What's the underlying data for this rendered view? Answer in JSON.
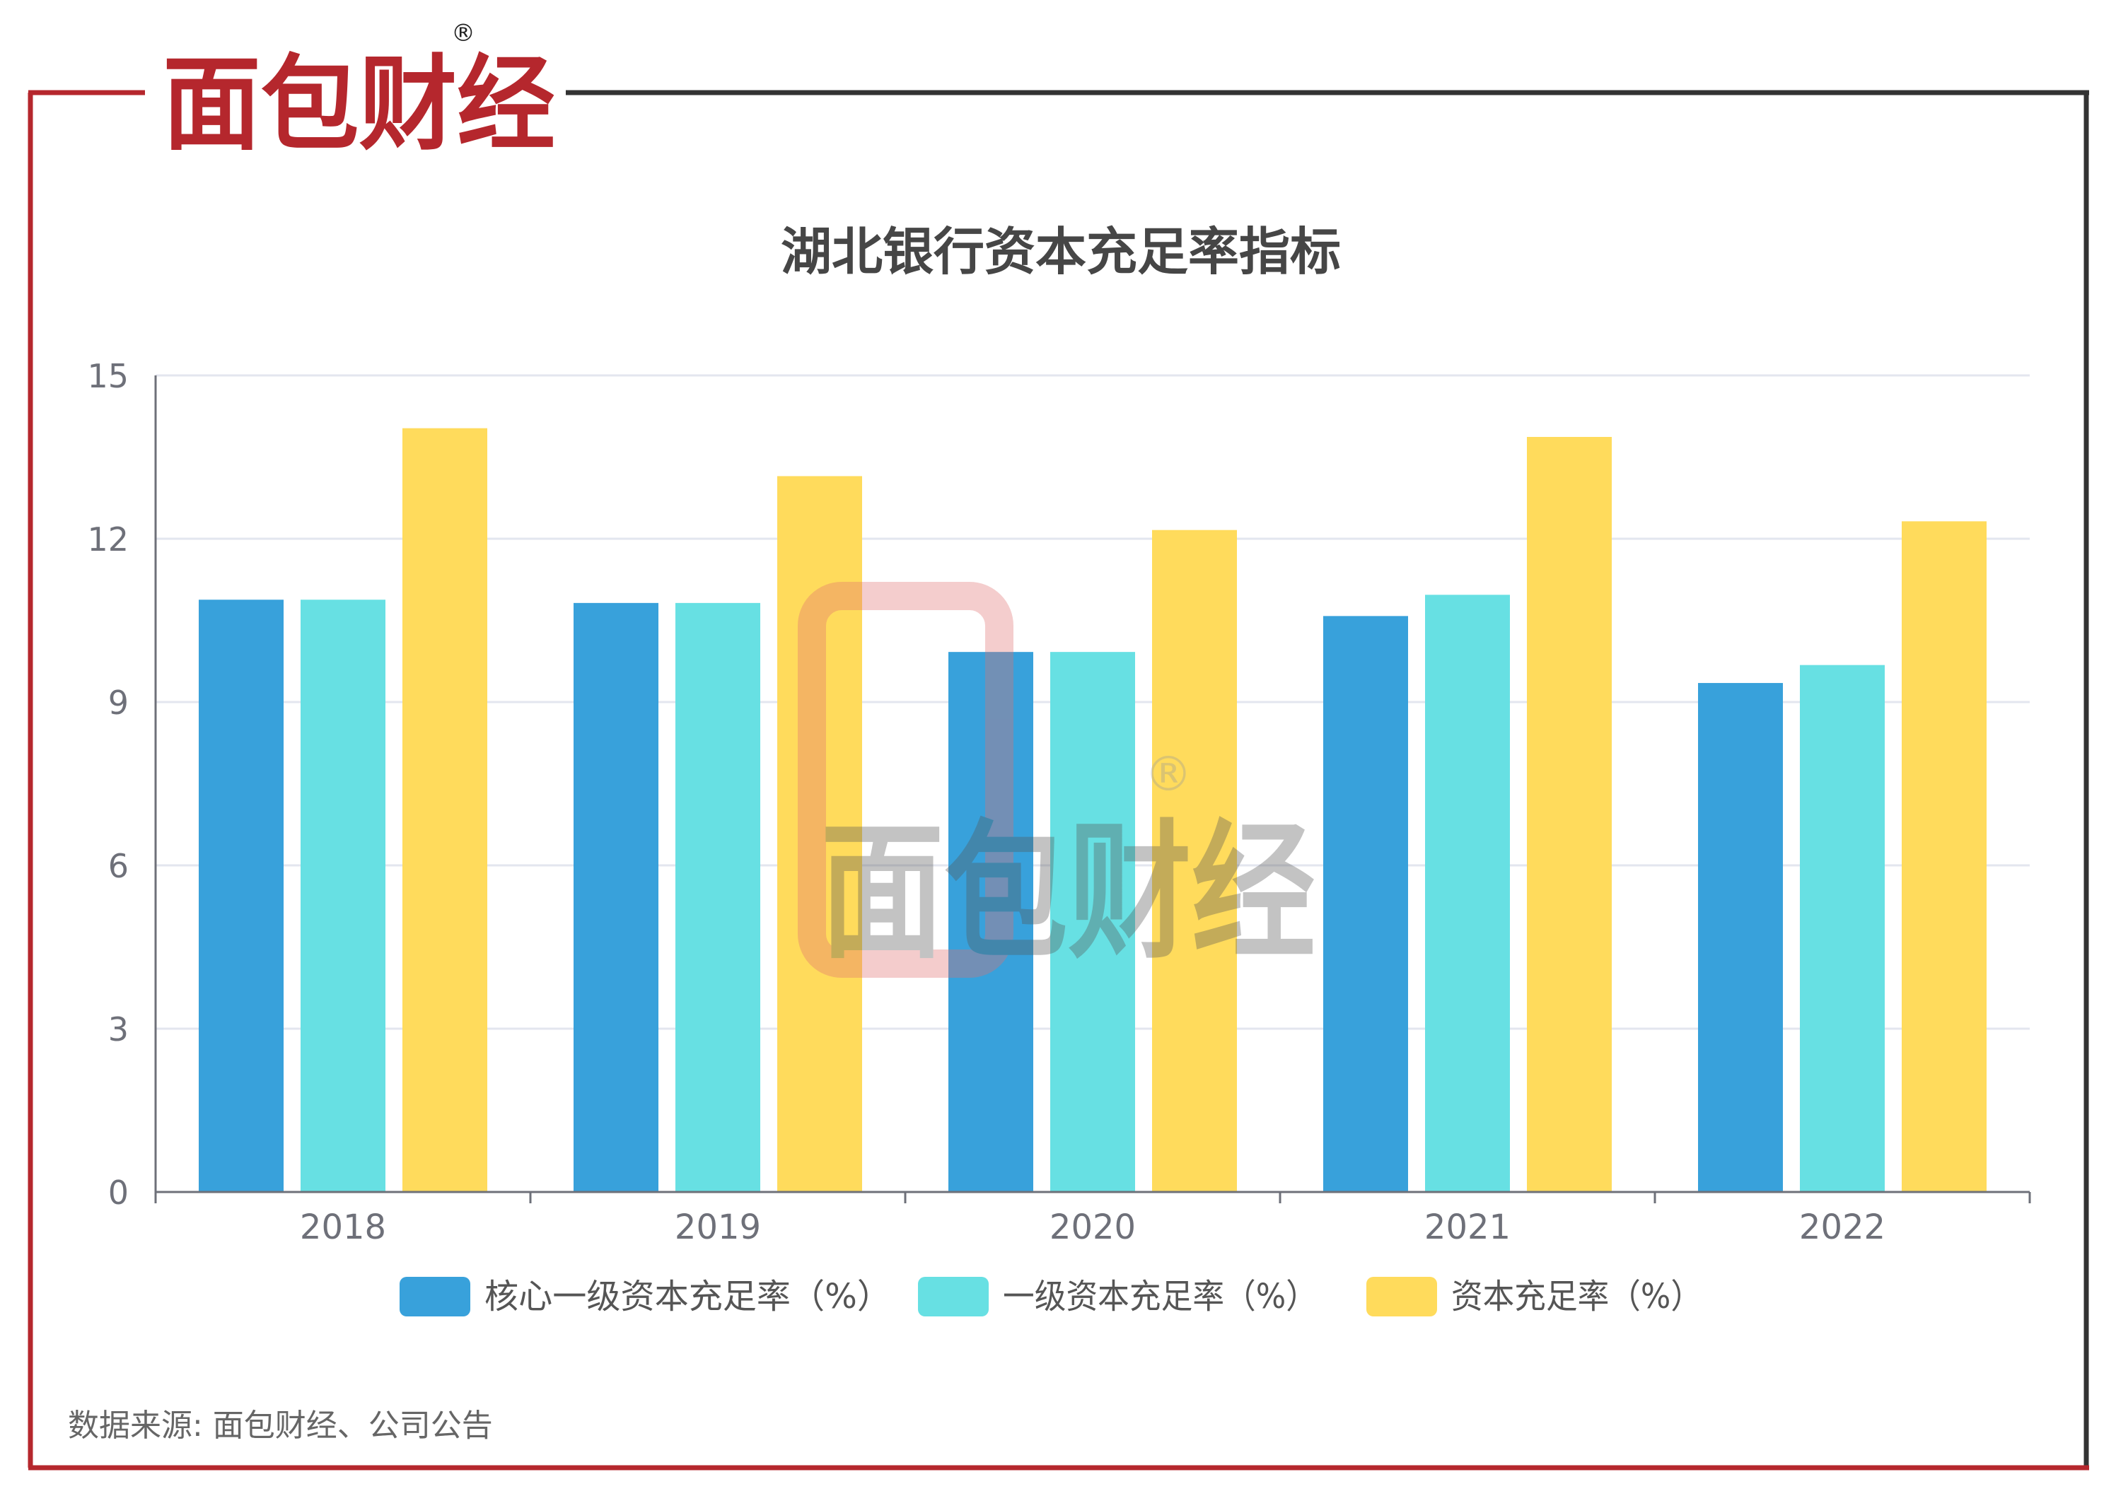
{
  "brand": {
    "logo_text": "面包财经",
    "registered_mark": "®",
    "primary_color": "#B5272D",
    "dark_color": "#222222"
  },
  "frame": {
    "left_border_color": "#B5272D",
    "top_border_color": "#333333",
    "bottom_border_color": "#B5272D",
    "right_border_color": "#333333"
  },
  "chart_data": {
    "type": "bar",
    "title": "湖北银行资本充足率指标",
    "categories": [
      "2018",
      "2019",
      "2020",
      "2021",
      "2022"
    ],
    "series": [
      {
        "name": "核心一级资本充足率（%）",
        "color": "#38A1DB",
        "values": [
          10.88,
          10.82,
          9.92,
          10.58,
          9.35
        ]
      },
      {
        "name": "一级资本充足率（%）",
        "color": "#67E0E3",
        "values": [
          10.88,
          10.82,
          9.92,
          10.97,
          9.68
        ]
      },
      {
        "name": "资本充足率（%）",
        "color": "#FFDB5C",
        "values": [
          14.03,
          13.15,
          12.16,
          13.87,
          12.32
        ]
      }
    ],
    "ylim": [
      0,
      15
    ],
    "yticks": [
      0,
      3,
      6,
      9,
      12,
      15
    ],
    "grid": true,
    "legend_position": "bottom"
  },
  "watermark": {
    "text": "面包财经",
    "registered_mark": "®"
  },
  "footer": {
    "source": "数据来源: 面包财经、公司公告"
  }
}
